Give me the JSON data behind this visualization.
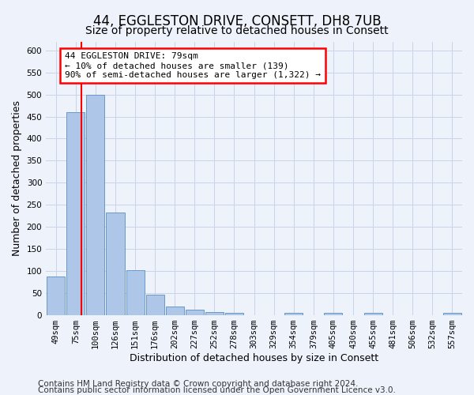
{
  "title": "44, EGGLESTON DRIVE, CONSETT, DH8 7UB",
  "subtitle": "Size of property relative to detached houses in Consett",
  "xlabel": "Distribution of detached houses by size in Consett",
  "ylabel": "Number of detached properties",
  "bar_labels": [
    "49sqm",
    "75sqm",
    "100sqm",
    "126sqm",
    "151sqm",
    "176sqm",
    "202sqm",
    "227sqm",
    "252sqm",
    "278sqm",
    "303sqm",
    "329sqm",
    "354sqm",
    "379sqm",
    "405sqm",
    "430sqm",
    "455sqm",
    "481sqm",
    "506sqm",
    "532sqm",
    "557sqm"
  ],
  "bar_values": [
    88,
    460,
    500,
    233,
    103,
    47,
    19,
    12,
    8,
    5,
    0,
    0,
    5,
    0,
    5,
    0,
    5,
    0,
    0,
    0,
    5
  ],
  "bar_color": "#aec6e8",
  "bar_edge_color": "#5a8fc3",
  "red_line_x": 1.3,
  "annotation_text": "44 EGGLESTON DRIVE: 79sqm\n← 10% of detached houses are smaller (139)\n90% of semi-detached houses are larger (1,322) →",
  "annotation_box_color": "white",
  "annotation_box_edge_color": "red",
  "ylim": [
    0,
    620
  ],
  "yticks": [
    0,
    50,
    100,
    150,
    200,
    250,
    300,
    350,
    400,
    450,
    500,
    550,
    600
  ],
  "footer_line1": "Contains HM Land Registry data © Crown copyright and database right 2024.",
  "footer_line2": "Contains public sector information licensed under the Open Government Licence v3.0.",
  "background_color": "#eef2fb",
  "grid_color": "#c8d4e8",
  "title_fontsize": 12,
  "subtitle_fontsize": 10,
  "axis_label_fontsize": 9,
  "tick_fontsize": 7.5,
  "annotation_fontsize": 8,
  "footer_fontsize": 7.5
}
